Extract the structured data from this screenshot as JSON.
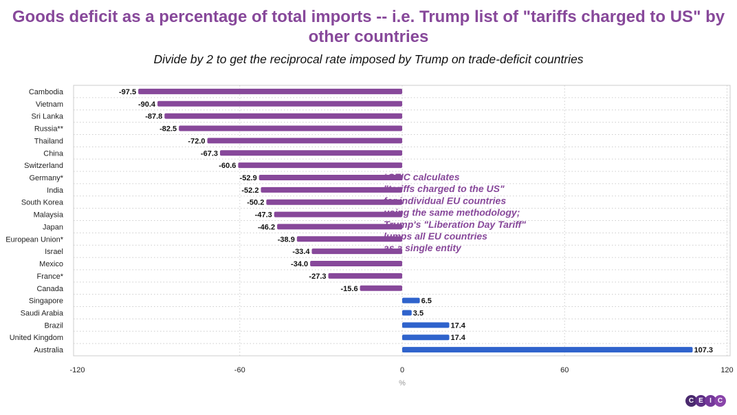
{
  "chart_data": {
    "type": "bar",
    "orientation": "horizontal",
    "title": "Goods deficit as a percentage of total imports -- i.e. Trump list of \"tariffs charged to US\" by other countries",
    "subtitle": "Divide by 2 to get the reciprocal rate imposed by Trump on trade-deficit countries",
    "xlabel": "%",
    "xlim": [
      -120,
      120
    ],
    "xticks": [
      -120,
      -60,
      0,
      60,
      120
    ],
    "grid": true,
    "categories": [
      "Cambodia",
      "Vietnam",
      "Sri Lanka",
      "Russia**",
      "Thailand",
      "China",
      "Switzerland",
      "Germany*",
      "India",
      "South Korea",
      "Malaysia",
      "Japan",
      "European Union*",
      "Israel",
      "Mexico",
      "France*",
      "Canada",
      "Singapore",
      "Saudi Arabia",
      "Brazil",
      "United Kingdom",
      "Australia"
    ],
    "values": [
      -97.5,
      -90.4,
      -87.8,
      -82.5,
      -72.0,
      -67.3,
      -60.6,
      -52.9,
      -52.2,
      -50.2,
      -47.3,
      -46.2,
      -38.9,
      -33.4,
      -34.0,
      -27.3,
      -15.6,
      6.5,
      3.5,
      17.4,
      17.4,
      107.3
    ],
    "data_labels": [
      "-97.5",
      "-90.4",
      "-87.8",
      "-82.5",
      "-72.0",
      "-67.3",
      "-60.6",
      "-52.9",
      "-52.2",
      "-50.2",
      "-47.3",
      "-46.2",
      "-38.9",
      "-33.4",
      "-34.0",
      "-27.3",
      "-15.6",
      "6.5",
      "3.5",
      "17.4",
      "17.4",
      "107.3"
    ],
    "colors": {
      "negative": "#87489a",
      "positive": "#2f63cc"
    },
    "annotation": [
      "*CEIC calculates",
      "\"tariffs charged to the US\"",
      "for individual EU countries",
      "using the same methodology;",
      "Trump's \"Liberation Day Tariff\"",
      "lumps all EU countries",
      "as a single entity"
    ]
  },
  "logo": {
    "letters": [
      "C",
      "E",
      "I",
      "C"
    ],
    "colors": [
      "#4a2a6e",
      "#5e2f86",
      "#74389a",
      "#8a45aa"
    ]
  }
}
